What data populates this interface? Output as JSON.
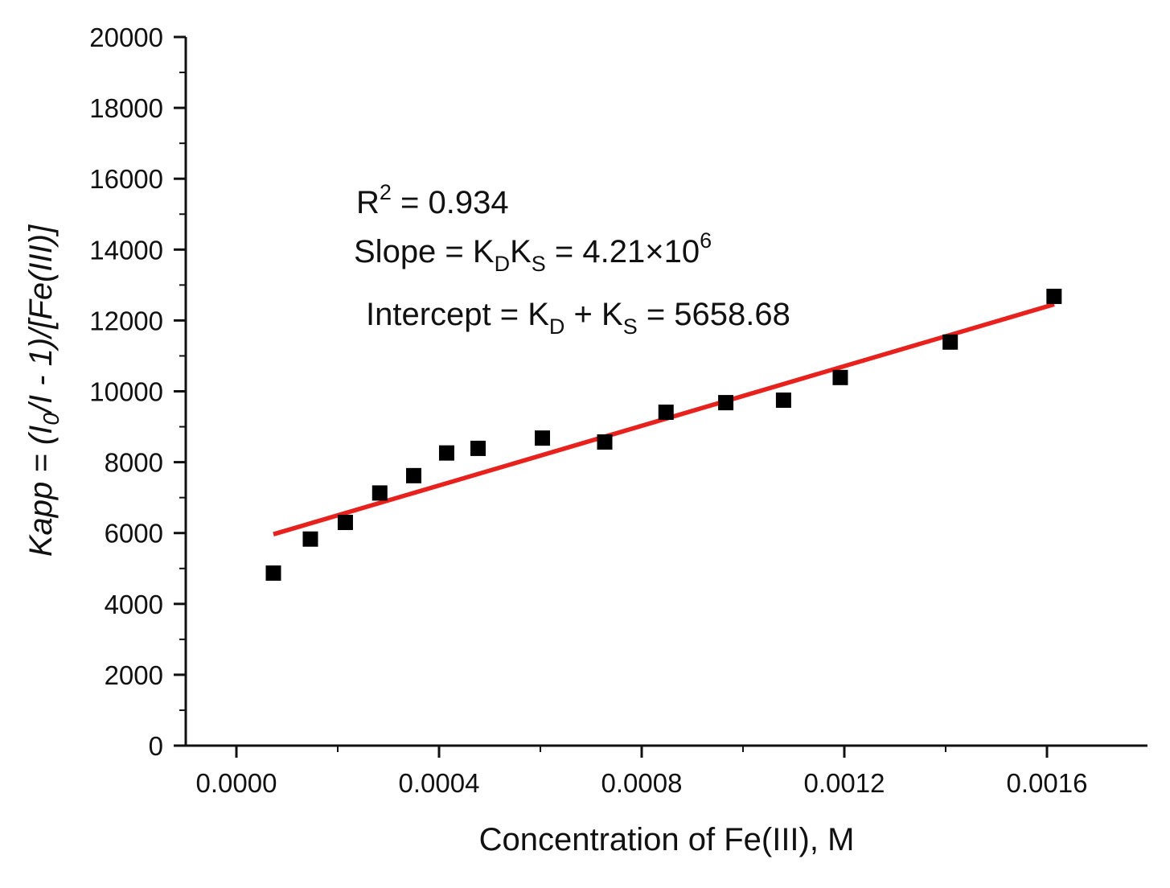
{
  "chart_data": {
    "type": "scatter",
    "xlabel": "Concentration of Fe(III), M",
    "ylabel": {
      "prefix": "Kapp = (I",
      "sub": "0",
      "suffix": "/I - 1)/[Fe(III)]"
    },
    "xlim": [
      -0.00015,
      0.0018
    ],
    "ylim": [
      0,
      20000
    ],
    "x_ticks": [
      0.0,
      0.0004,
      0.0008,
      0.0012,
      0.0016
    ],
    "x_tick_labels": [
      "0.0000",
      "0.0004",
      "0.0008",
      "0.0012",
      "0.0016"
    ],
    "y_ticks": [
      0,
      2000,
      4000,
      6000,
      8000,
      10000,
      12000,
      14000,
      16000,
      18000,
      20000
    ],
    "y_tick_labels": [
      "0",
      "2000",
      "4000",
      "6000",
      "8000",
      "10000",
      "12000",
      "14000",
      "16000",
      "18000",
      "20000"
    ],
    "grid": false,
    "series": [
      {
        "type": "scatter",
        "marker": "square",
        "color": "#000000",
        "points": [
          {
            "x": 7.3e-05,
            "y": 4870
          },
          {
            "x": 0.000146,
            "y": 5830
          },
          {
            "x": 0.000215,
            "y": 6300
          },
          {
            "x": 0.000283,
            "y": 7130
          },
          {
            "x": 0.00035,
            "y": 7620
          },
          {
            "x": 0.000415,
            "y": 8260
          },
          {
            "x": 0.000477,
            "y": 8390
          },
          {
            "x": 0.000604,
            "y": 8680
          },
          {
            "x": 0.000727,
            "y": 8570
          },
          {
            "x": 0.000848,
            "y": 9410
          },
          {
            "x": 0.000966,
            "y": 9680
          },
          {
            "x": 0.00108,
            "y": 9750
          },
          {
            "x": 0.001192,
            "y": 10390
          },
          {
            "x": 0.001409,
            "y": 11390
          },
          {
            "x": 0.001614,
            "y": 12680
          }
        ]
      },
      {
        "type": "line",
        "role": "linear fit",
        "color": "#e8211c",
        "points": [
          {
            "x": 7.3e-05,
            "y": 5966
          },
          {
            "x": 0.001614,
            "y": 12454
          }
        ]
      }
    ],
    "annotations": {
      "r2": {
        "base": "R",
        "sup": "2",
        "rest": " = 0.934"
      },
      "slope": {
        "a": "Slope = K",
        "sub1": "D",
        "b": "K",
        "sub2": "S",
        "c": " = 4.21×10",
        "sup": "6"
      },
      "intercept": {
        "a": "Intercept = K",
        "sub1": "D",
        "b": " + K",
        "sub2": "S",
        "c": " = 5658.68"
      }
    }
  }
}
